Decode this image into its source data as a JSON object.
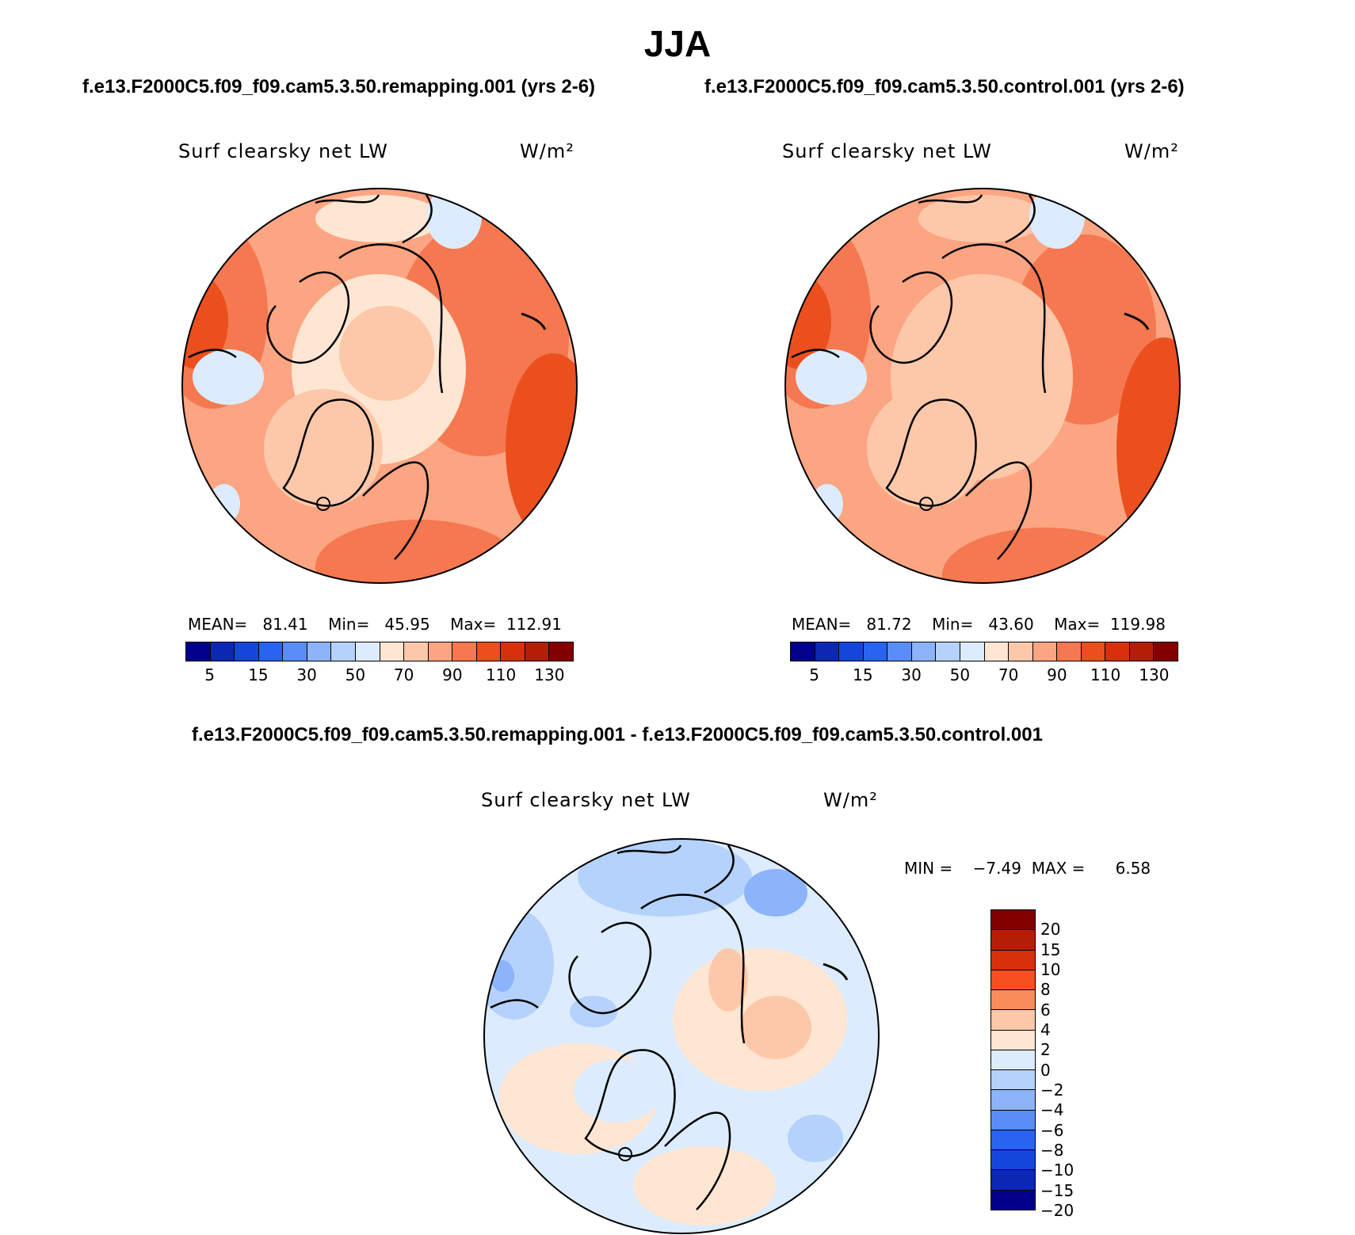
{
  "season": "JJA",
  "panels": {
    "left": {
      "case_title": "f.e13.F2000C5.f09_f09.cam5.3.50.remapping.001 (yrs 2-6)",
      "variable": "Surf clearsky net LW",
      "units": "W/m²",
      "stats": {
        "mean_label": "MEAN=",
        "mean": "81.41",
        "min_label": "Min=",
        "min": "45.95",
        "max_label": "Max=",
        "max": "112.91"
      }
    },
    "right": {
      "case_title": "f.e13.F2000C5.f09_f09.cam5.3.50.control.001 (yrs 2-6)",
      "variable": "Surf clearsky net LW",
      "units": "W/m²",
      "stats": {
        "mean_label": "MEAN=",
        "mean": "81.72",
        "min_label": "Min=",
        "min": "43.60",
        "max_label": "Max=",
        "max": "119.98"
      }
    },
    "diff": {
      "case_title": "f.e13.F2000C5.f09_f09.cam5.3.50.remapping.001 - f.e13.F2000C5.f09_f09.cam5.3.50.control.001",
      "variable": "Surf clearsky net LW",
      "units": "W/m²",
      "stats": {
        "min_label": "MIN =",
        "min": "−7.49",
        "max_label": "MAX =",
        "max": "6.58"
      }
    }
  },
  "colorbar_abs": {
    "colors": [
      "#00008b",
      "#0a28b4",
      "#1446dc",
      "#2864f0",
      "#5a8cf5",
      "#8cb4fa",
      "#b4d2fc",
      "#dcecfe",
      "#fee6d2",
      "#fdc8aa",
      "#fca582",
      "#f57850",
      "#eb4f1e",
      "#d7300a",
      "#b41e05",
      "#820000"
    ],
    "tick_labels": [
      "5",
      "15",
      "30",
      "50",
      "70",
      "90",
      "110",
      "130"
    ]
  },
  "colorbar_diff": {
    "colors": [
      "#820000",
      "#b41e05",
      "#d7300a",
      "#f5501e",
      "#fa8c5a",
      "#fdc8aa",
      "#fee6d2",
      "#dcecfe",
      "#b4d2fc",
      "#8cb4fa",
      "#5a8cf5",
      "#2864f0",
      "#1446dc",
      "#0a28b4",
      "#00008b"
    ],
    "tick_labels": [
      "20",
      "15",
      "10",
      "8",
      "6",
      "4",
      "2",
      "0",
      "−2",
      "−4",
      "−6",
      "−8",
      "−10",
      "−15",
      "−20"
    ]
  },
  "map_colors": {
    "left": {
      "base": "#fca582",
      "pole": "#fee6d2",
      "pole_inner": "#fdc8aa",
      "warm": "#f57850",
      "hot": "#eb4f1e",
      "cool": "#dcecfe",
      "greenland": "#fdc8aa"
    },
    "right": {
      "base": "#fca582",
      "pole": "#fdc8aa",
      "pole_inner": "#fdc8aa",
      "warm": "#f57850",
      "hot": "#eb4f1e",
      "cool": "#dcecfe",
      "greenland": "#fdc8aa"
    },
    "diff": {
      "base": "#dcecfe",
      "warm": "#fee6d2",
      "warmer": "#fdc8aa",
      "cool": "#b4d2fc",
      "cooler": "#8cb4fa"
    }
  }
}
